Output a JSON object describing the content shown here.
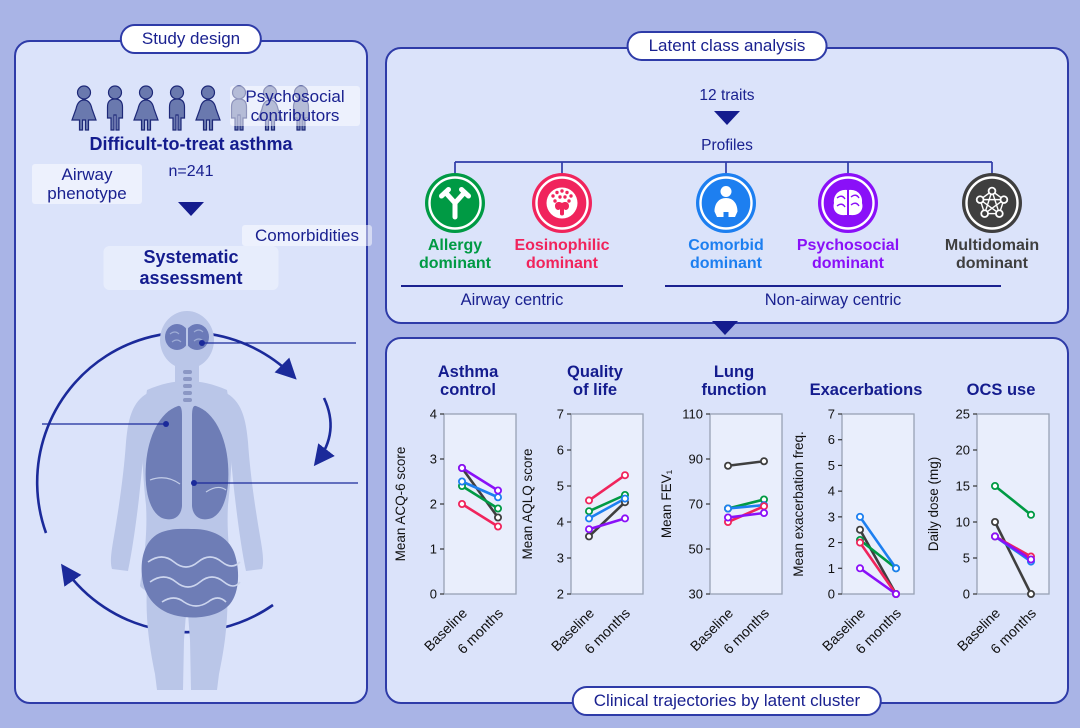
{
  "study_design": {
    "header": "Study design",
    "cohort_label": "Difficult-to-treat asthma",
    "cohort_n": "n=241",
    "assessment_label": "Systematic assessment",
    "people_icons": [
      "female",
      "male",
      "female",
      "male",
      "female",
      "male",
      "female",
      "male"
    ],
    "body_labels": {
      "psychosocial": "Psychosocial\ncontributors",
      "airway": "Airway\nphenotype",
      "comorbidities": "Comorbidities"
    }
  },
  "latent_class": {
    "header": "Latent class analysis",
    "traits_label": "12 traits",
    "profiles_label": "Profiles",
    "profiles": [
      {
        "name": "Allergy\ndominant",
        "color": "#009a44",
        "icon": "antibody-icon",
        "group": "airway"
      },
      {
        "name": "Eosinophilic\ndominant",
        "color": "#f0245c",
        "icon": "eosinophil-icon",
        "group": "airway"
      },
      {
        "name": "Comorbid\ndominant",
        "color": "#1d7ff0",
        "icon": "person-icon",
        "group": "non-airway"
      },
      {
        "name": "Psychosocial\ndominant",
        "color": "#8a10f8",
        "icon": "brain-icon",
        "group": "non-airway"
      },
      {
        "name": "Multidomain\ndominant",
        "color": "#3f3f3f",
        "icon": "network-icon",
        "group": "non-airway"
      }
    ],
    "groups": [
      {
        "label": "Airway centric"
      },
      {
        "label": "Non-airway centric"
      }
    ]
  },
  "trajectories": {
    "footer": "Clinical trajectories by latent cluster"
  },
  "chart_data": [
    {
      "type": "line",
      "title": "Asthma\ncontrol",
      "ylabel": "Mean ACQ-6 score",
      "x": [
        "Baseline",
        "6 months"
      ],
      "ylim": [
        0,
        4
      ],
      "yticks": [
        0,
        1,
        2,
        3,
        4
      ],
      "series": [
        {
          "name": "Multidomain dominant",
          "color": "#3f3f3f",
          "values": [
            2.8,
            1.7
          ]
        },
        {
          "name": "Allergy dominant",
          "color": "#009a44",
          "values": [
            2.4,
            1.9
          ]
        },
        {
          "name": "Comorbid dominant",
          "color": "#1d7ff0",
          "values": [
            2.5,
            2.15
          ]
        },
        {
          "name": "Eosinophilic dominant",
          "color": "#f0245c",
          "values": [
            2.0,
            1.5
          ]
        },
        {
          "name": "Psychosocial dominant",
          "color": "#8a10f8",
          "values": [
            2.8,
            2.3
          ]
        }
      ]
    },
    {
      "type": "line",
      "title": "Quality\nof life",
      "ylabel": "Mean AQLQ score",
      "x": [
        "Baseline",
        "6 months"
      ],
      "ylim": [
        2,
        7
      ],
      "yticks": [
        2,
        3,
        4,
        5,
        6,
        7
      ],
      "series": [
        {
          "name": "Multidomain dominant",
          "color": "#3f3f3f",
          "values": [
            3.6,
            4.55
          ]
        },
        {
          "name": "Allergy dominant",
          "color": "#009a44",
          "values": [
            4.3,
            4.75
          ]
        },
        {
          "name": "Comorbid dominant",
          "color": "#1d7ff0",
          "values": [
            4.1,
            4.65
          ]
        },
        {
          "name": "Eosinophilic dominant",
          "color": "#f0245c",
          "values": [
            4.6,
            5.3
          ]
        },
        {
          "name": "Psychosocial dominant",
          "color": "#8a10f8",
          "values": [
            3.8,
            4.1
          ]
        }
      ]
    },
    {
      "type": "line",
      "title": "Lung\nfunction",
      "ylabel": "Mean FEV₁",
      "x": [
        "Baseline",
        "6 months"
      ],
      "ylim": [
        30,
        110
      ],
      "yticks": [
        30,
        50,
        70,
        90,
        110
      ],
      "series": [
        {
          "name": "Multidomain dominant",
          "color": "#3f3f3f",
          "values": [
            87,
            89
          ]
        },
        {
          "name": "Allergy dominant",
          "color": "#009a44",
          "values": [
            68,
            72
          ]
        },
        {
          "name": "Comorbid dominant",
          "color": "#1d7ff0",
          "values": [
            68,
            69.5
          ]
        },
        {
          "name": "Eosinophilic dominant",
          "color": "#f0245c",
          "values": [
            62,
            69
          ]
        },
        {
          "name": "Psychosocial dominant",
          "color": "#8a10f8",
          "values": [
            64,
            66
          ]
        }
      ]
    },
    {
      "type": "line",
      "title": "Exacerbations",
      "ylabel": "Mean exacerbation freq.",
      "x": [
        "Baseline",
        "6 months"
      ],
      "ylim": [
        0,
        7
      ],
      "yticks": [
        0,
        1,
        2,
        3,
        4,
        5,
        6,
        7
      ],
      "series": [
        {
          "name": "Multidomain dominant",
          "color": "#3f3f3f",
          "values": [
            2.5,
            0
          ]
        },
        {
          "name": "Allergy dominant",
          "color": "#009a44",
          "values": [
            2.1,
            1
          ]
        },
        {
          "name": "Comorbid dominant",
          "color": "#1d7ff0",
          "values": [
            3,
            1
          ]
        },
        {
          "name": "Eosinophilic dominant",
          "color": "#f0245c",
          "values": [
            2,
            0
          ]
        },
        {
          "name": "Psychosocial dominant",
          "color": "#8a10f8",
          "values": [
            1,
            0
          ]
        }
      ]
    },
    {
      "type": "line",
      "title": "OCS use",
      "ylabel": "Daily dose (mg)",
      "x": [
        "Baseline",
        "6 months"
      ],
      "ylim": [
        0,
        25
      ],
      "yticks": [
        0,
        5,
        10,
        15,
        20,
        25
      ],
      "series": [
        {
          "name": "Multidomain dominant",
          "color": "#3f3f3f",
          "values": [
            10,
            0
          ]
        },
        {
          "name": "Allergy dominant",
          "color": "#009a44",
          "values": [
            15,
            11
          ]
        },
        {
          "name": "Comorbid dominant",
          "color": "#1d7ff0",
          "values": [
            8,
            4.5
          ]
        },
        {
          "name": "Eosinophilic dominant",
          "color": "#f0245c",
          "values": [
            8,
            5.2
          ]
        },
        {
          "name": "Psychosocial dominant",
          "color": "#8a10f8",
          "values": [
            8,
            4.8
          ]
        }
      ]
    }
  ]
}
